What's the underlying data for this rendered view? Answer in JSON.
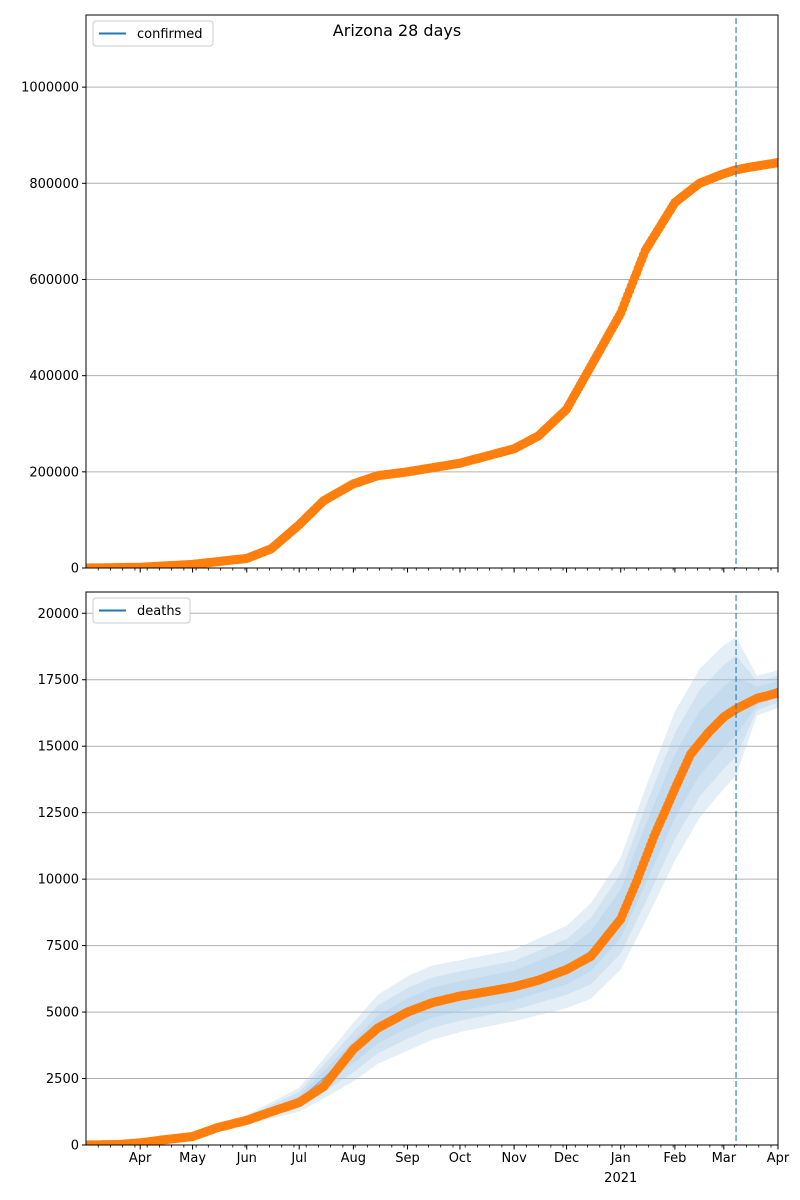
{
  "figure_title": "Arizona 28 days",
  "colors": {
    "observed": "#ff7f0e",
    "model": "#1f77b4",
    "band": "#a6c8e6",
    "grid": "#b0b0b0"
  },
  "x_axis": {
    "month_labels": [
      "Apr",
      "May",
      "Jun",
      "Jul",
      "Aug",
      "Sep",
      "Oct",
      "Nov",
      "Dec",
      "Jan",
      "Feb",
      "Mar",
      "Apr"
    ],
    "month_dates": [
      "2020-04-01",
      "2020-05-01",
      "2020-06-01",
      "2020-07-01",
      "2020-08-01",
      "2020-09-01",
      "2020-10-01",
      "2020-11-01",
      "2020-12-01",
      "2021-01-01",
      "2021-02-01",
      "2021-03-01",
      "2021-04-01"
    ],
    "year_label": "2021",
    "range": [
      "2020-03-01",
      "2021-04-01"
    ]
  },
  "chart_data": [
    {
      "type": "line",
      "legend": "confirmed",
      "legend_position": "top-left",
      "grid": true,
      "ylim": [
        0,
        1150000
      ],
      "yticks": [
        "0",
        "200000",
        "400000",
        "600000",
        "800000",
        "1000000"
      ],
      "ytick_values": [
        0,
        200000,
        400000,
        600000,
        800000,
        1000000
      ],
      "forecast_start": "2021-03-08",
      "series": [
        {
          "kind": "observed",
          "x": [
            "2020-03-01",
            "2020-04-01",
            "2020-05-01",
            "2020-06-01",
            "2020-06-15",
            "2020-07-01",
            "2020-07-15",
            "2020-08-01",
            "2020-08-15",
            "2020-09-01",
            "2020-10-01",
            "2020-11-01",
            "2020-11-15",
            "2020-12-01",
            "2020-12-15",
            "2021-01-01",
            "2021-01-15",
            "2021-02-01",
            "2021-02-15",
            "2021-03-01",
            "2021-03-08",
            "2021-03-15",
            "2021-04-01"
          ],
          "y": [
            0,
            1500,
            7500,
            20000,
            40000,
            90000,
            140000,
            175000,
            192000,
            200000,
            218000,
            248000,
            275000,
            330000,
            420000,
            530000,
            660000,
            760000,
            800000,
            820000,
            828000,
            833000,
            843000
          ]
        }
      ]
    },
    {
      "type": "line",
      "legend": "deaths",
      "legend_position": "top-left",
      "grid": true,
      "ylim": [
        0,
        20800
      ],
      "yticks": [
        "0",
        "2500",
        "5000",
        "7500",
        "10000",
        "12500",
        "15000",
        "17500",
        "20000"
      ],
      "ytick_values": [
        0,
        2500,
        5000,
        7500,
        10000,
        12500,
        15000,
        17500,
        20000
      ],
      "forecast_start": "2021-03-08",
      "series": [
        {
          "kind": "observed",
          "x": [
            "2020-03-01",
            "2020-03-20",
            "2020-04-01",
            "2020-04-15",
            "2020-05-01",
            "2020-05-15",
            "2020-06-01",
            "2020-06-15",
            "2020-07-01",
            "2020-07-15",
            "2020-08-01",
            "2020-08-15",
            "2020-09-01",
            "2020-09-15",
            "2020-10-01",
            "2020-10-15",
            "2020-11-01",
            "2020-11-15",
            "2020-12-01",
            "2020-12-15",
            "2021-01-01",
            "2021-01-10",
            "2021-01-20",
            "2021-02-01",
            "2021-02-10",
            "2021-02-20",
            "2021-03-01",
            "2021-03-08",
            "2021-03-20",
            "2021-04-01"
          ],
          "y": [
            0,
            20,
            80,
            200,
            320,
            650,
            930,
            1250,
            1600,
            2200,
            3600,
            4400,
            5000,
            5350,
            5600,
            5750,
            5950,
            6200,
            6600,
            7100,
            8500,
            9900,
            11600,
            13400,
            14700,
            15500,
            16100,
            16400,
            16800,
            17000
          ]
        },
        {
          "kind": "model-mean",
          "x": [
            "2020-03-01",
            "2020-04-01",
            "2020-05-01",
            "2020-06-01",
            "2020-07-01",
            "2020-07-15",
            "2020-08-01",
            "2020-08-15",
            "2020-09-01",
            "2020-09-15",
            "2020-10-01",
            "2020-11-01",
            "2020-12-01",
            "2020-12-15",
            "2021-01-01",
            "2021-01-15",
            "2021-02-01",
            "2021-02-15",
            "2021-03-01",
            "2021-03-08",
            "2021-03-20",
            "2021-04-01"
          ],
          "y": [
            0,
            60,
            350,
            950,
            1700,
            2500,
            3500,
            4350,
            4950,
            5350,
            5600,
            6000,
            6700,
            7300,
            8700,
            10900,
            13500,
            15100,
            16100,
            16500,
            16900,
            17150
          ]
        }
      ],
      "band_offsets": [
        [
          0,
          2,
          15,
          60,
          150,
          280,
          420,
          520,
          560,
          560,
          560,
          560,
          650,
          750,
          900,
          1100,
          1200,
          1200,
          1150,
          1100,
          350,
          300
        ],
        [
          0,
          5,
          30,
          120,
          300,
          520,
          760,
          900,
          950,
          950,
          930,
          920,
          1050,
          1250,
          1500,
          1800,
          2000,
          2000,
          1950,
          1900,
          550,
          500
        ],
        [
          0,
          8,
          45,
          180,
          450,
          750,
          1100,
          1300,
          1400,
          1400,
          1350,
          1350,
          1550,
          1800,
          2100,
          2500,
          2800,
          2800,
          2700,
          2600,
          750,
          700
        ]
      ]
    }
  ]
}
